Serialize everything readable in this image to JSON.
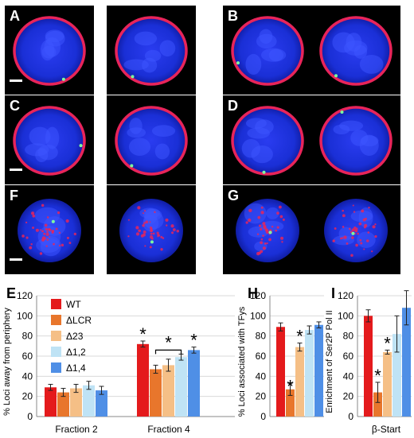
{
  "panels": {
    "micro": [
      {
        "label": "A",
        "kind": "rim",
        "tone": "#1a2fd6"
      },
      {
        "label": "",
        "kind": "rim",
        "tone": "#1a2fd6"
      },
      {
        "label": "B",
        "kind": "rim",
        "tone": "#1a2fd6"
      },
      {
        "label": "",
        "kind": "rim",
        "tone": "#1a2fd6"
      },
      {
        "label": "C",
        "kind": "rim",
        "tone": "#1a2fd6"
      },
      {
        "label": "",
        "kind": "rim",
        "tone": "#1a2fd6"
      },
      {
        "label": "D",
        "kind": "rim",
        "tone": "#1a2fd6"
      },
      {
        "label": "",
        "kind": "rim",
        "tone": "#1a2fd6"
      },
      {
        "label": "F",
        "kind": "dots",
        "tone": "#1a2fd6"
      },
      {
        "label": "",
        "kind": "dots",
        "tone": "#1a2fd6"
      },
      {
        "label": "G",
        "kind": "dots",
        "tone": "#1a2fd6"
      },
      {
        "label": "",
        "kind": "dots",
        "tone": "#1a2fd6"
      }
    ]
  },
  "colors": {
    "WT": "#e41a1c",
    "LCR": "#e8762c",
    "d23": "#f5bf86",
    "d12": "#bfe3f5",
    "d14": "#4f8fe6",
    "rim": "#e8245a",
    "nucleus": "#1a2fd6"
  },
  "chart_data": [
    {
      "type": "bar",
      "panel_label": "E",
      "ylabel": "% Loci away from periphery",
      "ylim": [
        0,
        120
      ],
      "yticks": [
        0,
        20,
        40,
        60,
        80,
        100,
        120
      ],
      "categories": [
        "Fraction 2",
        "Fraction 4"
      ],
      "series": [
        {
          "name": "WT",
          "values": [
            29,
            72
          ],
          "errors": [
            3,
            3
          ]
        },
        {
          "name": "ΔLCR",
          "values": [
            24,
            47
          ],
          "errors": [
            4,
            4
          ]
        },
        {
          "name": "Δ23",
          "values": [
            28,
            51
          ],
          "errors": [
            4,
            6
          ]
        },
        {
          "name": "Δ1,2",
          "values": [
            31,
            59
          ],
          "errors": [
            4,
            3
          ]
        },
        {
          "name": "Δ1,4",
          "values": [
            26,
            66
          ],
          "errors": [
            4,
            3
          ]
        }
      ],
      "annotations": [
        "*",
        "*",
        "*"
      ]
    },
    {
      "type": "bar",
      "panel_label": "H",
      "ylabel": "% Loci associated with TFys",
      "ylim": [
        0,
        120
      ],
      "yticks": [
        0,
        20,
        40,
        60,
        80,
        100,
        120
      ],
      "categories": [
        ""
      ],
      "series": [
        {
          "name": "WT",
          "values": [
            89
          ],
          "errors": [
            4
          ]
        },
        {
          "name": "ΔLCR",
          "values": [
            27
          ],
          "errors": [
            6
          ]
        },
        {
          "name": "Δ23",
          "values": [
            69
          ],
          "errors": [
            4
          ]
        },
        {
          "name": "Δ1,2",
          "values": [
            86
          ],
          "errors": [
            4
          ]
        },
        {
          "name": "Δ1,4",
          "values": [
            91
          ],
          "errors": [
            3
          ]
        }
      ],
      "annotations": [
        "*",
        "*"
      ]
    },
    {
      "type": "bar",
      "panel_label": "I",
      "ylabel": "Enrichment of Ser2P Pol II",
      "ylim": [
        0,
        120
      ],
      "yticks": [
        0,
        20,
        40,
        60,
        80,
        100,
        120
      ],
      "categories": [
        "β-Start"
      ],
      "series": [
        {
          "name": "WT",
          "values": [
            100
          ],
          "errors": [
            6
          ]
        },
        {
          "name": "ΔLCR",
          "values": [
            24
          ],
          "errors": [
            10
          ]
        },
        {
          "name": "Δ23",
          "values": [
            64
          ],
          "errors": [
            2
          ]
        },
        {
          "name": "Δ1,2",
          "values": [
            82
          ],
          "errors": [
            18
          ]
        },
        {
          "name": "Δ1,4",
          "values": [
            108
          ],
          "errors": [
            17
          ]
        }
      ],
      "annotations": [
        "*",
        "*"
      ]
    }
  ]
}
